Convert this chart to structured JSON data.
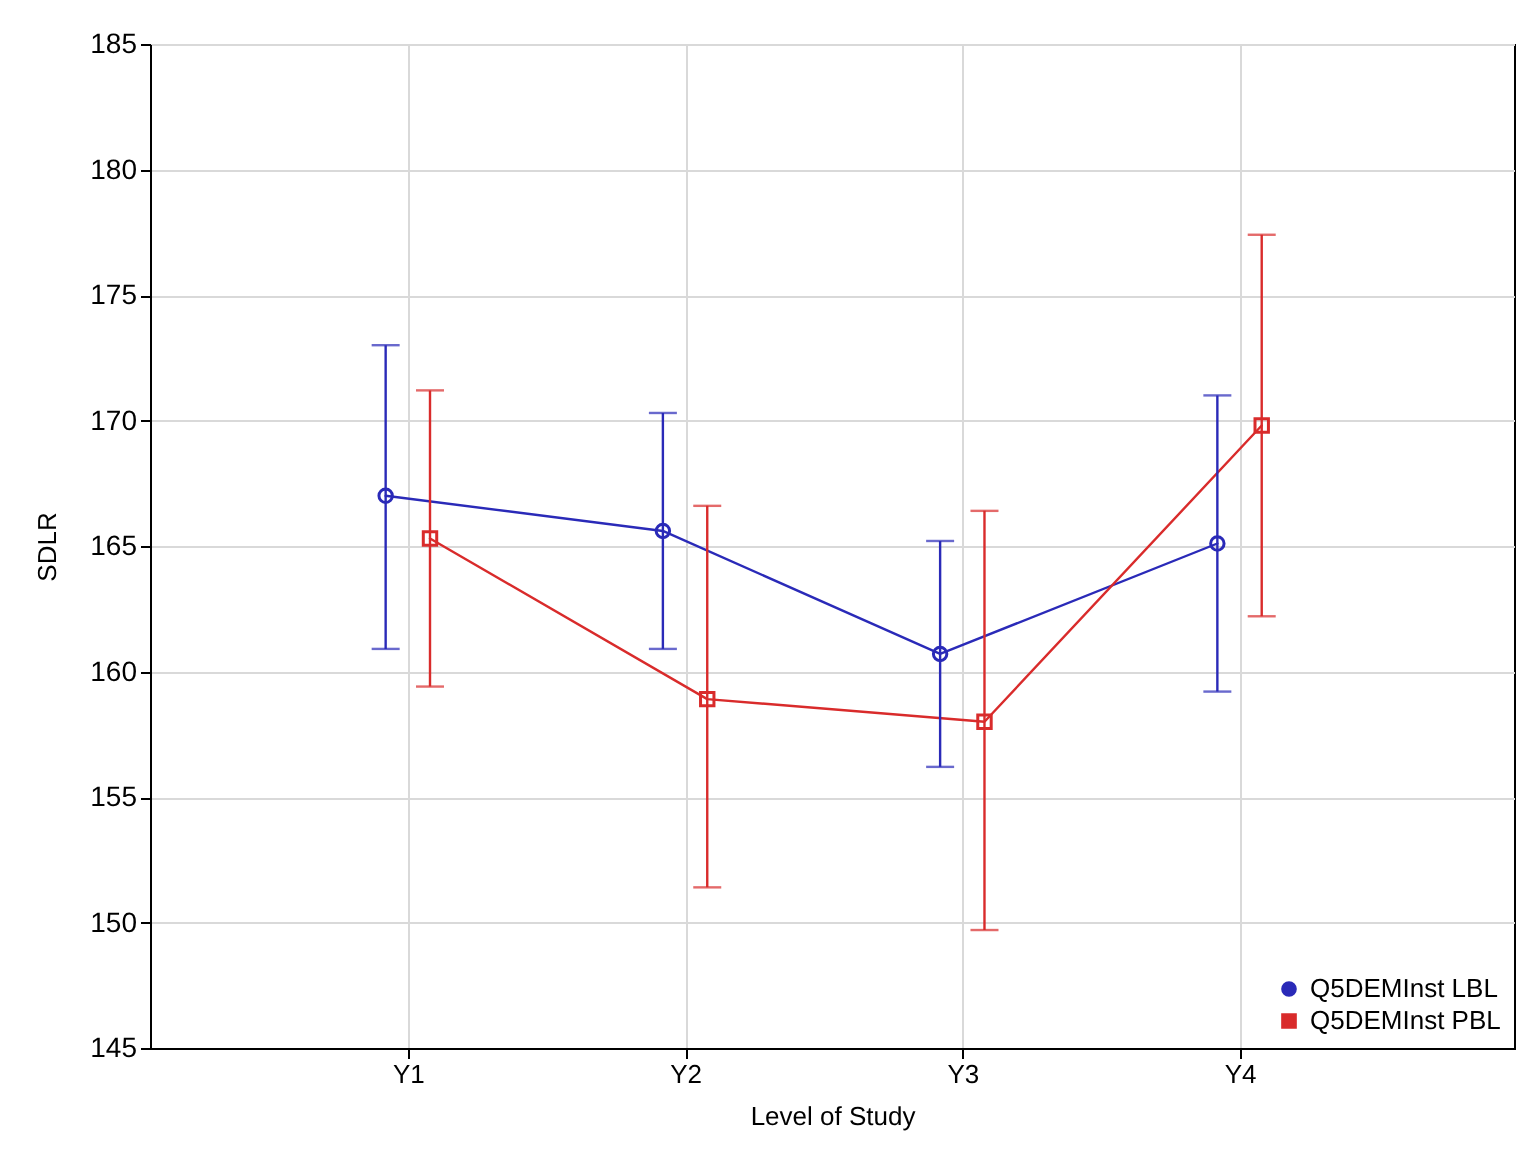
{
  "chart_data": {
    "type": "line",
    "xlabel": "Level of Study",
    "ylabel": "SDLR",
    "categories": [
      "Y1",
      "Y2",
      "Y3",
      "Y4"
    ],
    "series": [
      {
        "name": "Q5DEMInst LBL",
        "color": "#2a2ab8",
        "marker": "circle",
        "values": [
          167.0,
          165.6,
          160.7,
          165.1
        ],
        "errors": [
          [
            160.9,
            173.0
          ],
          [
            160.9,
            170.3
          ],
          [
            156.2,
            165.2
          ],
          [
            159.2,
            171.0
          ]
        ]
      },
      {
        "name": "Q5DEMInst PBL",
        "color": "#d92b2b",
        "marker": "square",
        "values": [
          165.3,
          158.9,
          158.0,
          169.8
        ],
        "errors": [
          [
            159.4,
            171.2
          ],
          [
            151.4,
            166.6
          ],
          [
            149.7,
            166.4
          ],
          [
            162.2,
            177.4
          ]
        ]
      }
    ],
    "ylim": [
      145,
      185
    ],
    "yticks": [
      145,
      150,
      155,
      160,
      165,
      170,
      175,
      180,
      185
    ],
    "grid": true,
    "legend": "bottom right"
  }
}
